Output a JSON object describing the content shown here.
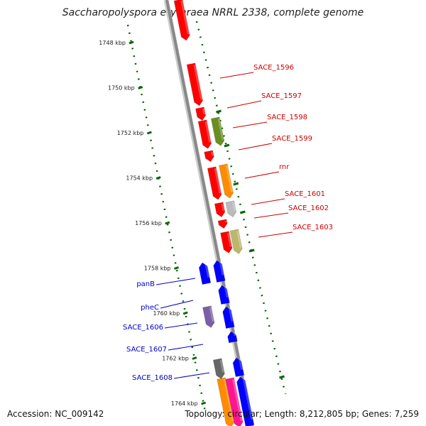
{
  "title": "Saccharopolyspora erythraea NRRL 2338, complete genome",
  "footer": {
    "accession": "Accession: NC_009142",
    "summary": "Topology: circular; Length: 8,212,805 bp; Genes: 7,259"
  },
  "ticks": [
    "1748 kbp",
    "1750 kbp",
    "1752 kbp",
    "1754 kbp",
    "1756 kbp",
    "1758 kbp",
    "1760 kbp",
    "1762 kbp",
    "1764 kbp"
  ],
  "forward_labels": [
    "SACE_1596",
    "SACE_1597",
    "SACE_1598",
    "SACE_1599",
    "rnr",
    "SACE_1601",
    "SACE_1602",
    "SACE_1603"
  ],
  "reverse_labels": [
    "panB",
    "pheC",
    "SACE_1606",
    "SACE_1607",
    "SACE_1608"
  ],
  "colors": {
    "forward_label": "#cc0000",
    "reverse_label": "#0000cc",
    "backbone": "#888888",
    "tick": "#006600",
    "gene_red": "#ff0000",
    "gene_blue": "#0000ff",
    "gene_olive": "#6b8e23",
    "gene_orange": "#ff8c00",
    "gene_gray": "#bbbbbb",
    "gene_khaki": "#bdb76b",
    "gene_dark": "#666666",
    "gene_pink": "#ff1493",
    "gene_purple": "#7a5fa8"
  }
}
